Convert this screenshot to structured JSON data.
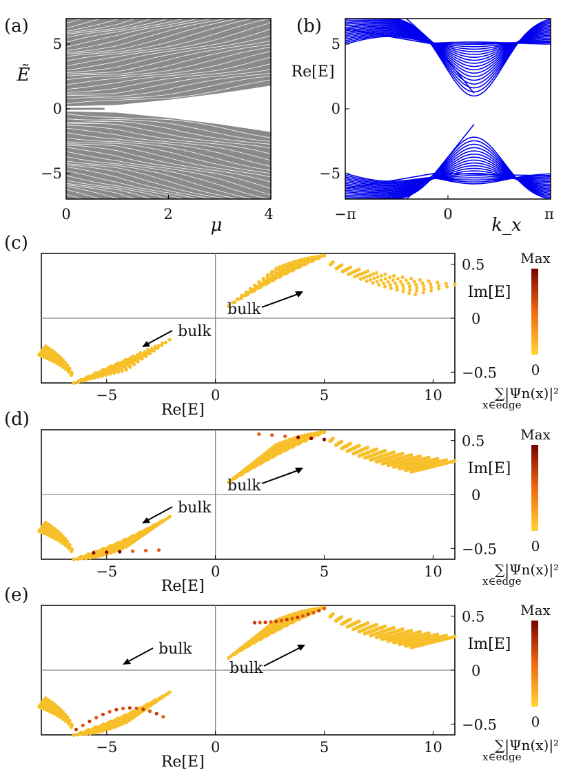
{
  "chart_data": [
    {
      "panel_label": "(a)",
      "type": "line",
      "xlabel": "μ",
      "ylabel": "Ẽ",
      "xlim": [
        0,
        4
      ],
      "ylim": [
        -7,
        7
      ],
      "xticks": [
        "0",
        "2",
        "4"
      ],
      "yticks": [
        "5",
        "0",
        "−5"
      ],
      "series_color": "#8a8a8a",
      "gap_edge_at_mu": [
        [
          0,
          0.2
        ],
        [
          1,
          0.3
        ],
        [
          2,
          0.7
        ],
        [
          3,
          1.2
        ],
        [
          4,
          1.8
        ]
      ]
    },
    {
      "panel_label": "(b)",
      "type": "line",
      "xlabel": "k_x",
      "ylabel": "Re[E]",
      "xlim": [
        -3.1416,
        3.1416
      ],
      "ylim": [
        -7,
        7
      ],
      "xticks": [
        "−π",
        "0",
        "π"
      ],
      "yticks": [
        "5",
        "0",
        "−5"
      ],
      "series_color": "#0000ee",
      "upper_band_min": 1.0,
      "lower_band_max": -2.2
    },
    {
      "panel_label": "(c)",
      "type": "scatter",
      "xlabel": "Re[E]",
      "ylabel": "Im[E]",
      "xlim": [
        -8,
        11
      ],
      "ylim": [
        -0.6,
        0.6
      ],
      "xticks": [
        "−5",
        "0",
        "5",
        "10"
      ],
      "yticks": [
        "0.5",
        "0",
        "−0.5"
      ],
      "annotations": [
        "bulk",
        "bulk"
      ],
      "edge_points": 0,
      "colorbar": {
        "max_label": "Max",
        "min_label": "0",
        "title": "∑|Ψn(x)|²",
        "subscript": "x∈edge"
      }
    },
    {
      "panel_label": "(d)",
      "type": "scatter",
      "xlabel": "Re[E]",
      "ylabel": "Im[E]",
      "xlim": [
        -8,
        11
      ],
      "ylim": [
        -0.6,
        0.6
      ],
      "xticks": [
        "−5",
        "0",
        "5",
        "10"
      ],
      "yticks": [
        "0.5",
        "0",
        "−0.5"
      ],
      "annotations": [
        "bulk",
        "bulk"
      ],
      "edge_points": 1,
      "colorbar": {
        "max_label": "Max",
        "min_label": "0",
        "title": "∑|Ψn(x)|²",
        "subscript": "x∈edge"
      }
    },
    {
      "panel_label": "(e)",
      "type": "scatter",
      "xlabel": "Re[E]",
      "ylabel": "Im[E]",
      "xlim": [
        -8,
        11
      ],
      "ylim": [
        -0.6,
        0.6
      ],
      "xticks": [
        "−5",
        "0",
        "5",
        "10"
      ],
      "yticks": [
        "0.5",
        "0",
        "−0.5"
      ],
      "annotations": [
        "bulk",
        "bulk"
      ],
      "edge_points": 2,
      "colorbar": {
        "max_label": "Max",
        "min_label": "0",
        "title": "∑|Ψn(x)|²",
        "subscript": "x∈edge"
      }
    }
  ],
  "colors": {
    "bulk_point": "#f7c02a",
    "edge_dark": "#8b0000",
    "edge_mid": "#e05a10",
    "band_blue": "#0000ee",
    "band_gray": "#8a8a8a",
    "colorbar_top": "#7a0000",
    "colorbar_mid": "#ef6a10",
    "colorbar_bottom": "#ffd535"
  }
}
